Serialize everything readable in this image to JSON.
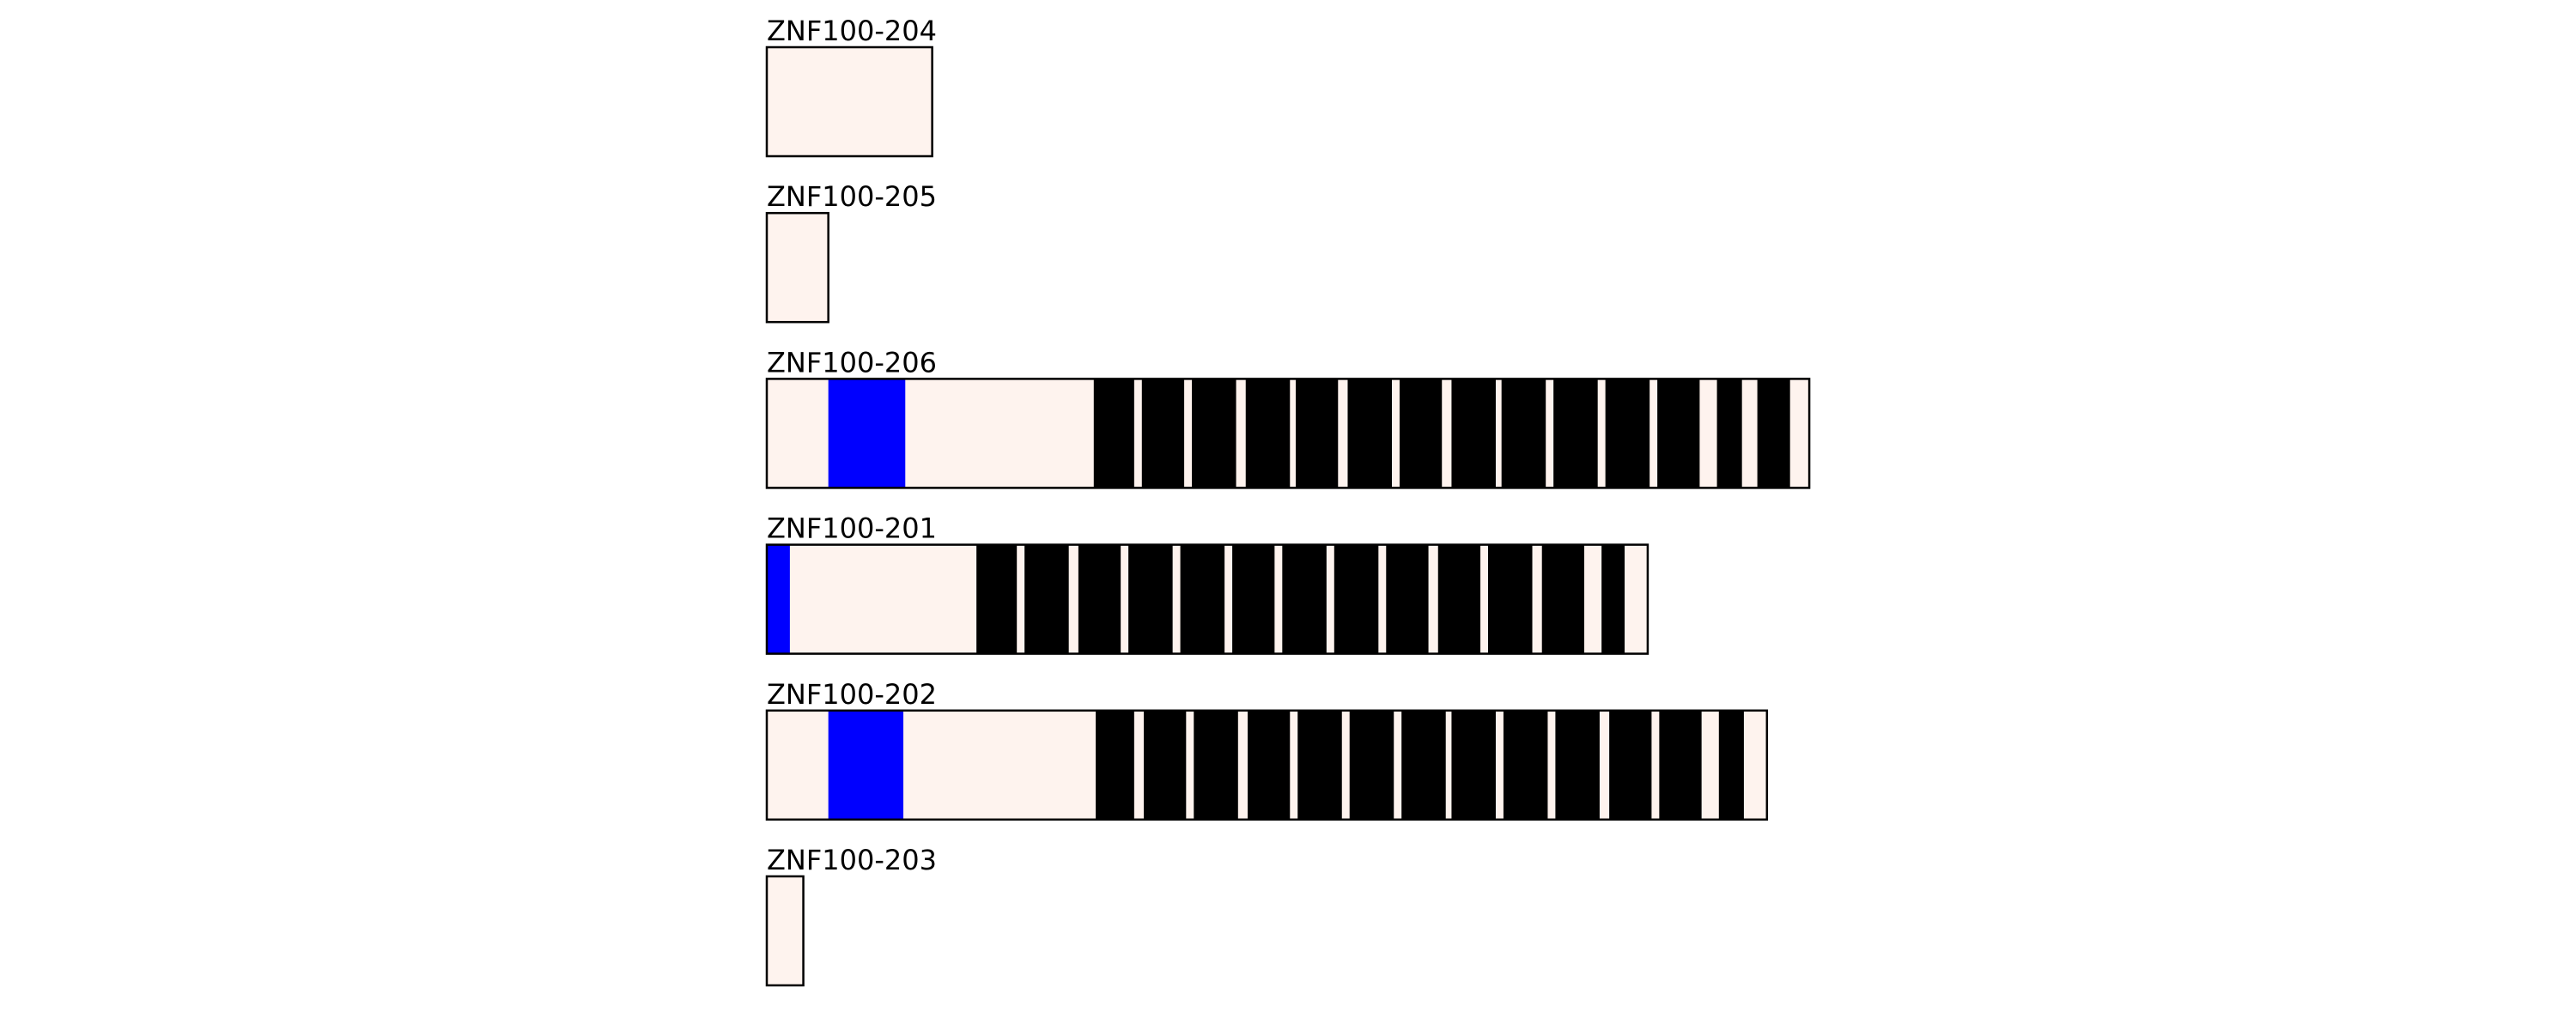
{
  "track_fill": "#fef3ee",
  "tracks": [
    {
      "label": "ZNF100-204",
      "length": 86,
      "domain_sets": []
    },
    {
      "label": "ZNF100-205",
      "length": 32,
      "domain_sets": []
    },
    {
      "label": "ZNF100-206",
      "length": 542,
      "domain_sets": [
        {
          "color": "#0000ff",
          "spans": [
            [
              32,
              72
            ]
          ]
        },
        {
          "color": "#000000",
          "spans": [
            [
              170,
              191
            ],
            [
              195,
              217
            ],
            [
              221,
              244
            ],
            [
              249,
              272
            ],
            [
              275,
              297
            ],
            [
              302,
              325
            ],
            [
              329,
              351
            ],
            [
              356,
              379
            ],
            [
              382,
              405
            ],
            [
              409,
              432
            ],
            [
              436,
              459
            ],
            [
              463,
              485
            ],
            [
              494,
              507
            ],
            [
              515,
              532
            ]
          ]
        }
      ]
    },
    {
      "label": "ZNF100-201",
      "length": 458,
      "domain_sets": [
        {
          "color": "#0000ff",
          "spans": [
            [
              0,
              12
            ]
          ]
        },
        {
          "color": "#000000",
          "spans": [
            [
              109,
              130
            ],
            [
              134,
              157
            ],
            [
              162,
              184
            ],
            [
              188,
              211
            ],
            [
              215,
              238
            ],
            [
              242,
              264
            ],
            [
              268,
              291
            ],
            [
              295,
              318
            ],
            [
              322,
              344
            ],
            [
              349,
              371
            ],
            [
              375,
              398
            ],
            [
              403,
              425
            ],
            [
              434,
              446
            ]
          ]
        }
      ]
    },
    {
      "label": "ZNF100-202",
      "length": 520,
      "domain_sets": [
        {
          "color": "#0000ff",
          "spans": [
            [
              32,
              71
            ]
          ]
        },
        {
          "color": "#000000",
          "spans": [
            [
              171,
              191
            ],
            [
              196,
              218
            ],
            [
              222,
              245
            ],
            [
              250,
              272
            ],
            [
              276,
              299
            ],
            [
              303,
              326
            ],
            [
              330,
              353
            ],
            [
              356,
              379
            ],
            [
              383,
              406
            ],
            [
              410,
              433
            ],
            [
              438,
              460
            ],
            [
              464,
              486
            ],
            [
              495,
              508
            ]
          ]
        }
      ]
    },
    {
      "label": "ZNF100-203",
      "length": 19,
      "domain_sets": []
    }
  ]
}
